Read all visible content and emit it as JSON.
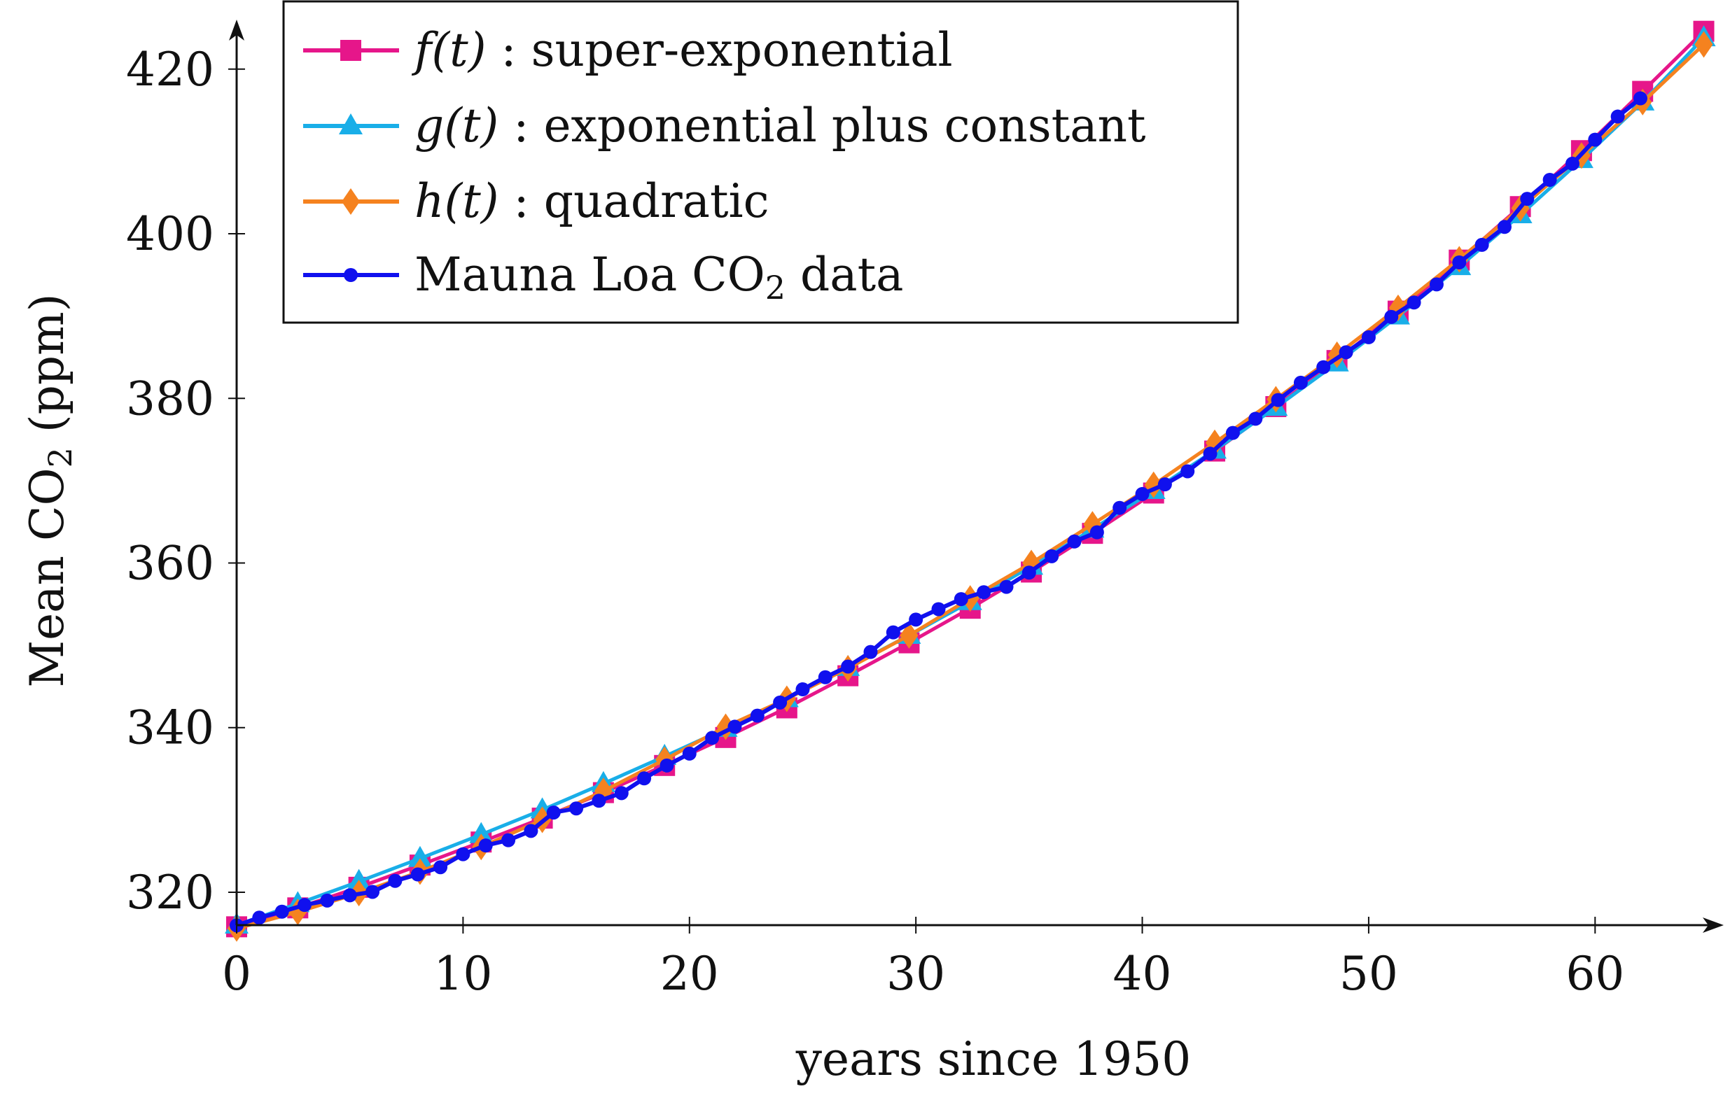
{
  "chart_data": {
    "type": "line",
    "xlabel": "years since 1950",
    "ylabel_main": "Mean CO",
    "ylabel_sub": "2",
    "ylabel_tail": " (ppm)",
    "xlim": [
      0,
      65
    ],
    "ylim": [
      316,
      425
    ],
    "xticks": [
      0,
      10,
      20,
      30,
      40,
      50,
      60
    ],
    "yticks": [
      320,
      340,
      360,
      380,
      400,
      420
    ],
    "xtick_labels": [
      "0",
      "10",
      "20",
      "30",
      "40",
      "50",
      "60"
    ],
    "ytick_labels": [
      "320",
      "340",
      "360",
      "380",
      "400",
      "420"
    ],
    "legend_position": "top-left",
    "colors": {
      "f": "#e6168a",
      "g": "#19aee8",
      "h": "#f5821f",
      "data": "#1010ee",
      "axis": "#111111"
    },
    "series": [
      {
        "key": "f",
        "label_math": "f(t)",
        "label_text": " : super-exponential",
        "marker": "square",
        "x": [
          0,
          2.7,
          5.4,
          8.1,
          10.8,
          13.5,
          16.2,
          18.9,
          21.6,
          24.3,
          27.0,
          29.7,
          32.4,
          35.1,
          37.8,
          40.5,
          43.2,
          45.9,
          48.6,
          51.3,
          54.0,
          56.7,
          59.4,
          62.1,
          64.8
        ],
        "y": [
          315.8,
          318.1,
          320.6,
          323.3,
          326.1,
          329.0,
          332.1,
          335.4,
          338.8,
          342.4,
          346.3,
          350.3,
          354.5,
          358.9,
          363.6,
          368.5,
          373.6,
          379.0,
          384.6,
          390.6,
          396.8,
          403.3,
          410.1,
          417.3,
          424.6
        ]
      },
      {
        "key": "g",
        "label_math": "g(t)",
        "label_text": " : exponential plus constant",
        "marker": "triangle",
        "x": [
          0,
          2.7,
          5.4,
          8.1,
          10.8,
          13.5,
          16.2,
          18.9,
          21.6,
          24.3,
          27.0,
          29.7,
          32.4,
          35.1,
          37.8,
          40.5,
          43.2,
          45.9,
          48.6,
          51.3,
          54.0,
          56.7,
          59.4,
          62.1,
          64.8
        ],
        "y": [
          316.0,
          318.6,
          321.3,
          324.1,
          327.0,
          330.0,
          333.2,
          336.5,
          339.9,
          343.5,
          347.3,
          351.2,
          355.3,
          359.6,
          364.1,
          368.8,
          373.7,
          378.9,
          384.3,
          390.0,
          396.0,
          402.3,
          409.0,
          416.0,
          423.8
        ]
      },
      {
        "key": "h",
        "label_math": "h(t)",
        "label_text": " : quadratic",
        "marker": "diamond",
        "x": [
          0,
          2.7,
          5.4,
          8.1,
          10.8,
          13.5,
          16.2,
          18.9,
          21.6,
          24.3,
          27.0,
          29.7,
          32.4,
          35.1,
          37.8,
          40.5,
          43.2,
          45.9,
          48.6,
          51.3,
          54.0,
          56.7,
          59.4,
          62.1,
          64.8
        ],
        "y": [
          315.6,
          317.6,
          319.9,
          322.5,
          325.5,
          328.8,
          332.3,
          336.1,
          340.1,
          343.5,
          347.2,
          351.2,
          355.7,
          360.0,
          364.7,
          369.5,
          374.6,
          379.9,
          385.3,
          391.0,
          396.9,
          403.1,
          409.5,
          416.0,
          423.0
        ]
      },
      {
        "key": "data",
        "label_math": "",
        "label_text": "Mauna Loa CO",
        "label_sub": "2",
        "label_tail": " data",
        "marker": "circle",
        "x": [
          0,
          1,
          2,
          3,
          4,
          5,
          6,
          7,
          8,
          9,
          10,
          11,
          12,
          13,
          14,
          15,
          16,
          17,
          18,
          19,
          20,
          21,
          22,
          23,
          24,
          25,
          26,
          27,
          28,
          29,
          30,
          31,
          32,
          33,
          34,
          35,
          36,
          37,
          38,
          39,
          40,
          41,
          42,
          43,
          44,
          45,
          46,
          47,
          48,
          49,
          50,
          51,
          52,
          53,
          54,
          55,
          56,
          57,
          58,
          59,
          60,
          61,
          62
        ],
        "y": [
          315.97,
          316.91,
          317.64,
          318.45,
          318.99,
          319.62,
          320.04,
          321.38,
          322.16,
          323.04,
          324.62,
          325.68,
          326.32,
          327.45,
          329.68,
          330.18,
          331.11,
          332.04,
          333.83,
          335.4,
          336.84,
          338.75,
          340.11,
          341.45,
          343.05,
          344.65,
          346.12,
          347.42,
          349.19,
          351.57,
          353.12,
          354.39,
          355.61,
          356.45,
          357.1,
          358.83,
          360.82,
          362.61,
          363.73,
          366.7,
          368.38,
          369.55,
          371.14,
          373.28,
          375.8,
          377.52,
          379.8,
          381.9,
          383.79,
          385.6,
          387.43,
          389.9,
          391.65,
          393.85,
          396.52,
          398.65,
          400.83,
          404.24,
          406.55,
          408.52,
          411.43,
          414.24,
          416.45
        ]
      }
    ]
  }
}
